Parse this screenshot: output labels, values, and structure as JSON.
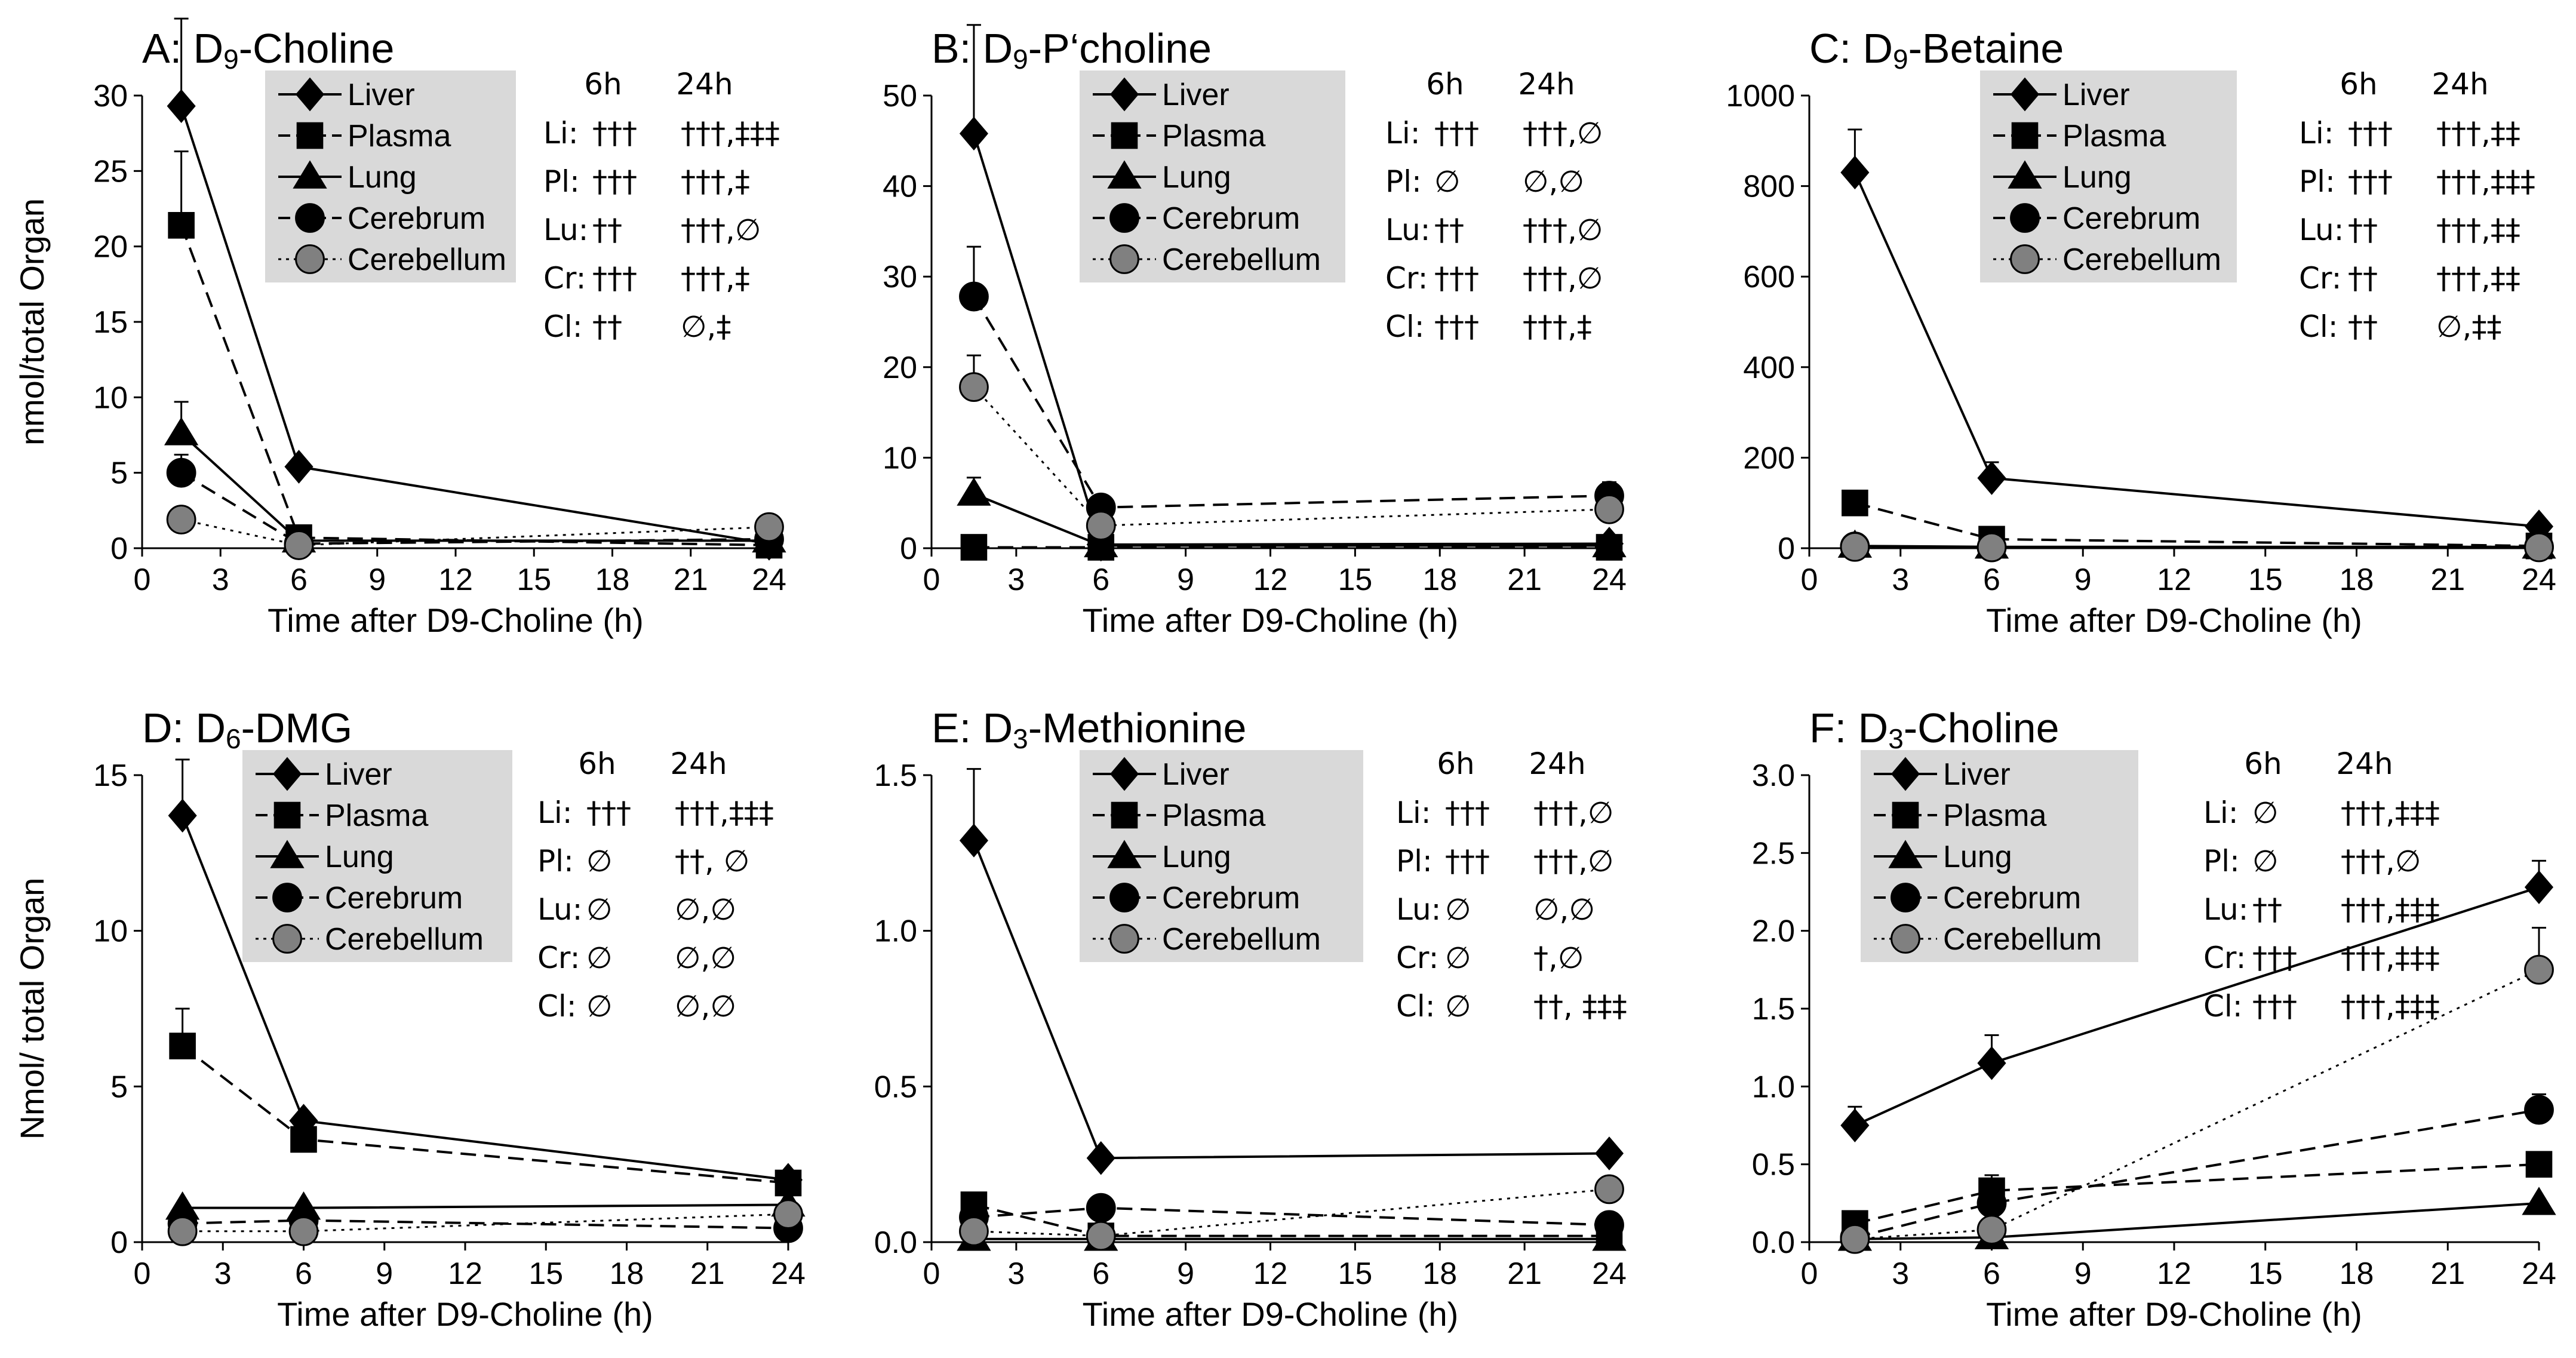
{
  "figure": {
    "legend_labels": [
      "Liver",
      "Plasma",
      "Lung",
      "Cerebrum",
      "Cerebellum"
    ],
    "series_style": {
      "Liver": {
        "marker": "diamond",
        "line": "solid",
        "fill": "#000000"
      },
      "Plasma": {
        "marker": "square",
        "line": "dashed",
        "fill": "#000000"
      },
      "Lung": {
        "marker": "triangle",
        "line": "solid",
        "fill": "#000000"
      },
      "Cerebrum": {
        "marker": "circle",
        "line": "dashed",
        "fill": "#000000"
      },
      "Cerebellum": {
        "marker": "circle",
        "line": "dotted",
        "fill": "#808080"
      }
    },
    "legend_bg": "#d9d9d9"
  },
  "chart_data": [
    {
      "id": "A",
      "type": "line",
      "title_pre": "A: D",
      "title_sub": "9",
      "title_post": "-Choline",
      "ylabel": "nmol/total Organ",
      "xlabel": "Time after D9-Choline (h)",
      "xlim": [
        0,
        24
      ],
      "xticks": [
        0,
        3,
        6,
        9,
        12,
        15,
        18,
        21,
        24
      ],
      "ylim": [
        0,
        30
      ],
      "yticks": [
        0,
        5,
        10,
        15,
        20,
        25,
        30
      ],
      "x": [
        1.5,
        6,
        24
      ],
      "series": [
        {
          "name": "Liver",
          "values": [
            29.3,
            5.4,
            0.3
          ],
          "err": [
            5.8,
            0.5,
            0
          ]
        },
        {
          "name": "Plasma",
          "values": [
            21.4,
            0.7,
            0.2
          ],
          "err": [
            4.9,
            0,
            0
          ]
        },
        {
          "name": "Lung",
          "values": [
            7.6,
            0.5,
            0.5
          ],
          "err": [
            2.1,
            0,
            0
          ]
        },
        {
          "name": "Cerebrum",
          "values": [
            5.0,
            0.3,
            0.6
          ],
          "err": [
            1.2,
            0,
            0
          ]
        },
        {
          "name": "Cerebellum",
          "values": [
            1.9,
            0.2,
            1.4
          ],
          "err": [
            0,
            0,
            0
          ]
        }
      ],
      "stats": {
        "headers": [
          "6h",
          "24h"
        ],
        "rows": [
          [
            "Li:",
            "†††",
            "†††,‡‡‡"
          ],
          [
            "Pl:",
            "†††",
            "†††,‡"
          ],
          [
            "Lu:",
            "††",
            "†††,∅"
          ],
          [
            "Cr:",
            "†††",
            "†††,‡"
          ],
          [
            "Cl:",
            "††",
            "∅,‡"
          ]
        ]
      }
    },
    {
      "id": "B",
      "type": "line",
      "title_pre": "B: D",
      "title_sub": "9",
      "title_post": "-P‘choline",
      "ylabel": "",
      "xlabel": "Time after D9-Choline (h)",
      "xlim": [
        0,
        24
      ],
      "xticks": [
        0,
        3,
        6,
        9,
        12,
        15,
        18,
        21,
        24
      ],
      "ylim": [
        0,
        50
      ],
      "yticks": [
        0,
        10,
        20,
        30,
        40,
        50
      ],
      "x": [
        1.5,
        6,
        24
      ],
      "series": [
        {
          "name": "Liver",
          "values": [
            45.8,
            0.4,
            0.5
          ],
          "err": [
            12.0,
            0,
            0
          ]
        },
        {
          "name": "Plasma",
          "values": [
            0.1,
            0.1,
            0.1
          ],
          "err": [
            0,
            0,
            0
          ]
        },
        {
          "name": "Lung",
          "values": [
            6.0,
            0.3,
            0.3
          ],
          "err": [
            1.8,
            0,
            0
          ]
        },
        {
          "name": "Cerebrum",
          "values": [
            27.8,
            4.5,
            5.8
          ],
          "err": [
            5.5,
            0.8,
            1.5
          ]
        },
        {
          "name": "Cerebellum",
          "values": [
            17.8,
            2.5,
            4.3
          ],
          "err": [
            3.5,
            0,
            1.2
          ]
        }
      ],
      "stats": {
        "headers": [
          "6h",
          "24h"
        ],
        "rows": [
          [
            "Li:",
            "†††",
            "†††,∅"
          ],
          [
            "Pl:",
            "∅",
            "∅,∅"
          ],
          [
            "Lu:",
            "††",
            "†††,∅"
          ],
          [
            "Cr:",
            "†††",
            "†††,∅"
          ],
          [
            "Cl:",
            "†††",
            "†††,‡"
          ]
        ]
      }
    },
    {
      "id": "C",
      "type": "line",
      "title_pre": "C: D",
      "title_sub": "9",
      "title_post": "-Betaine",
      "ylabel": "",
      "xlabel": "Time after D9-Choline (h)",
      "xlim": [
        0,
        24
      ],
      "xticks": [
        0,
        3,
        6,
        9,
        12,
        15,
        18,
        21,
        24
      ],
      "ylim": [
        0,
        1000
      ],
      "yticks": [
        0,
        200,
        400,
        600,
        800,
        1000
      ],
      "x": [
        1.5,
        6,
        24
      ],
      "series": [
        {
          "name": "Liver",
          "values": [
            830,
            155,
            48
          ],
          "err": [
            95,
            35,
            0
          ]
        },
        {
          "name": "Plasma",
          "values": [
            100,
            20,
            5
          ],
          "err": [
            0,
            0,
            0
          ]
        },
        {
          "name": "Lung",
          "values": [
            5,
            3,
            3
          ],
          "err": [
            0,
            0,
            0
          ]
        },
        {
          "name": "Cerebrum",
          "values": [
            4,
            2,
            3
          ],
          "err": [
            0,
            0,
            0
          ]
        },
        {
          "name": "Cerebellum",
          "values": [
            3,
            2,
            2
          ],
          "err": [
            0,
            0,
            0
          ]
        }
      ],
      "stats": {
        "headers": [
          "6h",
          "24h"
        ],
        "rows": [
          [
            "Li:",
            "†††",
            "†††,‡‡"
          ],
          [
            "Pl:",
            "†††",
            "†††,‡‡‡"
          ],
          [
            "Lu:",
            "††",
            "†††,‡‡"
          ],
          [
            "Cr:",
            "††",
            "†††,‡‡"
          ],
          [
            "Cl:",
            "††",
            "∅,‡‡"
          ]
        ]
      }
    },
    {
      "id": "D",
      "type": "line",
      "title_pre": "D: D",
      "title_sub": "6",
      "title_post": "-DMG",
      "ylabel": "Nmol/ total Organ",
      "xlabel": "Time after D9-Choline (h)",
      "xlim": [
        0,
        24
      ],
      "xticks": [
        0,
        3,
        6,
        9,
        12,
        15,
        18,
        21,
        24
      ],
      "ylim": [
        0,
        15
      ],
      "yticks": [
        0,
        5,
        10,
        15
      ],
      "x": [
        1.5,
        6,
        24
      ],
      "series": [
        {
          "name": "Liver",
          "values": [
            13.7,
            3.9,
            2.0
          ],
          "err": [
            1.8,
            0,
            0
          ]
        },
        {
          "name": "Plasma",
          "values": [
            6.3,
            3.3,
            1.9
          ],
          "err": [
            1.2,
            0,
            0
          ]
        },
        {
          "name": "Lung",
          "values": [
            1.1,
            1.1,
            1.2
          ],
          "err": [
            0,
            0,
            0
          ]
        },
        {
          "name": "Cerebrum",
          "values": [
            0.6,
            0.7,
            0.45
          ],
          "err": [
            0,
            0,
            0
          ]
        },
        {
          "name": "Cerebellum",
          "values": [
            0.35,
            0.35,
            0.9
          ],
          "err": [
            0,
            0,
            0
          ]
        }
      ],
      "stats": {
        "headers": [
          "6h",
          "24h"
        ],
        "rows": [
          [
            "Li:",
            "†††",
            "†††,‡‡‡"
          ],
          [
            "Pl:",
            "∅",
            "††, ∅"
          ],
          [
            "Lu:",
            "∅",
            "∅,∅"
          ],
          [
            "Cr:",
            "∅",
            "∅,∅"
          ],
          [
            "Cl:",
            "∅",
            "∅,∅"
          ]
        ]
      }
    },
    {
      "id": "E",
      "type": "line",
      "title_pre": "E: D",
      "title_sub": "3",
      "title_post": "-Methionine",
      "ylabel": "",
      "xlabel": "Time after D9-Choline (h)",
      "xlim": [
        0,
        24
      ],
      "xticks": [
        0,
        3,
        6,
        9,
        12,
        15,
        18,
        21,
        24
      ],
      "ylim": [
        0,
        1.5
      ],
      "yticks": [
        0.0,
        0.5,
        1.0,
        1.5
      ],
      "x": [
        1.5,
        6,
        24
      ],
      "series": [
        {
          "name": "Liver",
          "values": [
            1.29,
            0.27,
            0.285
          ],
          "err": [
            0.23,
            0,
            0
          ]
        },
        {
          "name": "Plasma",
          "values": [
            0.12,
            0.02,
            0.02
          ],
          "err": [
            0,
            0,
            0
          ]
        },
        {
          "name": "Lung",
          "values": [
            0.01,
            0.01,
            0.01
          ],
          "err": [
            0,
            0,
            0
          ]
        },
        {
          "name": "Cerebrum",
          "values": [
            0.08,
            0.11,
            0.055
          ],
          "err": [
            0,
            0,
            0
          ]
        },
        {
          "name": "Cerebellum",
          "values": [
            0.035,
            0.02,
            0.17
          ],
          "err": [
            0,
            0,
            0
          ]
        }
      ],
      "stats": {
        "headers": [
          "6h",
          "24h"
        ],
        "rows": [
          [
            "Li:",
            "†††",
            "†††,∅"
          ],
          [
            "Pl:",
            "†††",
            "†††,∅"
          ],
          [
            "Lu:",
            "∅",
            "∅,∅"
          ],
          [
            "Cr:",
            "∅",
            "†,∅"
          ],
          [
            "Cl:",
            "∅",
            "††, ‡‡‡"
          ]
        ]
      }
    },
    {
      "id": "F",
      "type": "line",
      "title_pre": "F: D",
      "title_sub": "3",
      "title_post": "-Choline",
      "ylabel": "",
      "xlabel": "Time after D9-Choline (h)",
      "xlim": [
        0,
        24
      ],
      "xticks": [
        0,
        3,
        6,
        9,
        12,
        15,
        18,
        21,
        24
      ],
      "ylim": [
        0,
        3.0
      ],
      "yticks": [
        0.0,
        0.5,
        1.0,
        1.5,
        2.0,
        2.5,
        3.0
      ],
      "yfmt": 1,
      "x": [
        1.5,
        6,
        24
      ],
      "series": [
        {
          "name": "Liver",
          "values": [
            0.75,
            1.15,
            2.28
          ],
          "err": [
            0.12,
            0.18,
            0.17
          ]
        },
        {
          "name": "Plasma",
          "values": [
            0.12,
            0.33,
            0.5
          ],
          "err": [
            0,
            0.1,
            0
          ]
        },
        {
          "name": "Lung",
          "values": [
            0.02,
            0.03,
            0.25
          ],
          "err": [
            0,
            0,
            0
          ]
        },
        {
          "name": "Cerebrum",
          "values": [
            0.03,
            0.25,
            0.85
          ],
          "err": [
            0,
            0.1,
            0.1
          ]
        },
        {
          "name": "Cerebellum",
          "values": [
            0.02,
            0.08,
            1.75
          ],
          "err": [
            0,
            0,
            0.27
          ]
        }
      ],
      "stats": {
        "headers": [
          "6h",
          "24h"
        ],
        "rows": [
          [
            "Li:",
            "∅",
            "†††,‡‡‡"
          ],
          [
            "Pl:",
            "∅",
            "†††,∅"
          ],
          [
            "Lu:",
            "††",
            "†††,‡‡‡"
          ],
          [
            "Cr:",
            "†††",
            "†††,‡‡‡"
          ],
          [
            "Cl:",
            "†††",
            "†††,‡‡‡"
          ]
        ]
      }
    }
  ]
}
